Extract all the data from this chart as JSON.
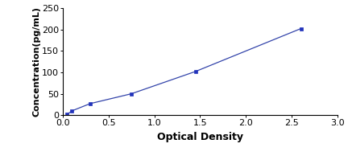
{
  "x_data": [
    0.05,
    0.1,
    0.3,
    0.75,
    1.45,
    2.6
  ],
  "y_data": [
    2,
    10,
    27,
    50,
    102,
    202
  ],
  "line_color": "#3344aa",
  "marker_color": "#2233bb",
  "marker_style": "s",
  "marker_size": 3,
  "line_width": 0.9,
  "xlabel": "Optical Density",
  "ylabel": "Concentration(pg/mL)",
  "xlim": [
    0,
    3
  ],
  "ylim": [
    0,
    250
  ],
  "xticks": [
    0,
    0.5,
    1,
    1.5,
    2,
    2.5,
    3
  ],
  "yticks": [
    0,
    50,
    100,
    150,
    200,
    250
  ],
  "xlabel_fontsize": 9,
  "ylabel_fontsize": 8,
  "tick_fontsize": 8,
  "background_color": "#ffffff"
}
